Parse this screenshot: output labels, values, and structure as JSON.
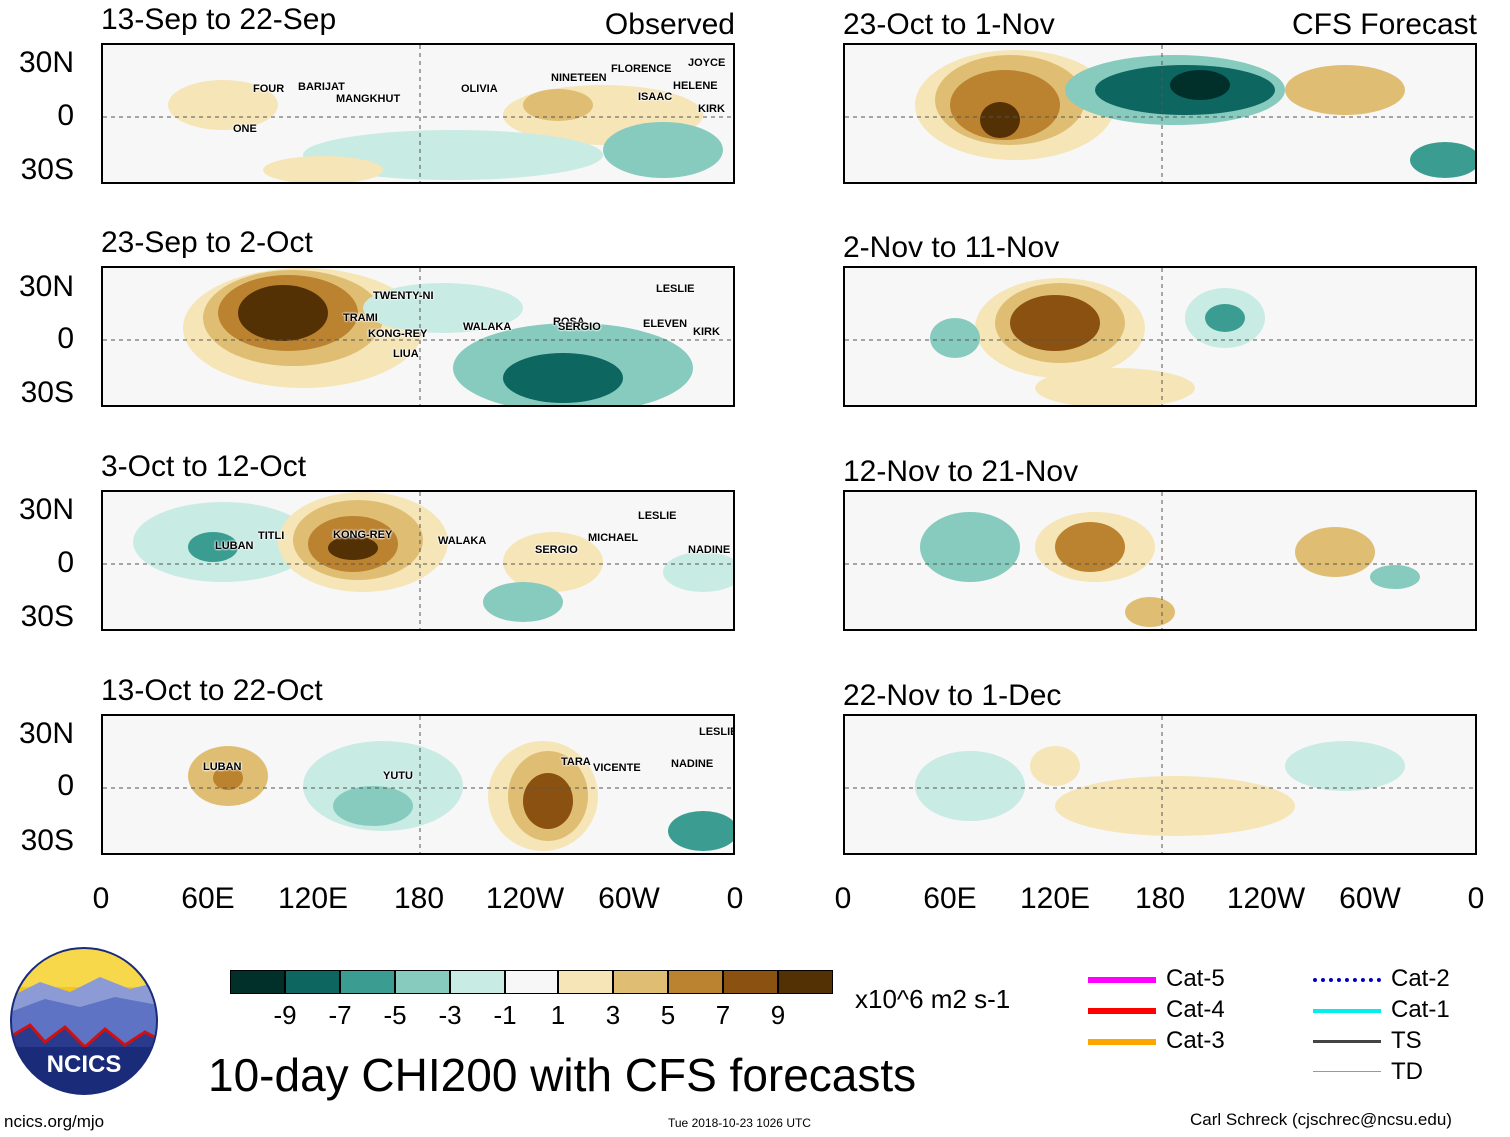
{
  "title": "10-day CHI200 with CFS forecasts",
  "units": "x10^6 m2 s-1",
  "column_labels": {
    "left": "Observed",
    "right": "CFS Forecast"
  },
  "lat_labels": [
    "30N",
    "0",
    "30S"
  ],
  "lon_labels": [
    "0",
    "60E",
    "120E",
    "180",
    "120W",
    "60W",
    "0"
  ],
  "panels": [
    {
      "period": "13-Sep to 22-Sep",
      "storms": [
        "FOUR",
        "BARIJAT",
        "MANGKHUT",
        "OLIVIA",
        "NINETEEN",
        "FLORENCE",
        "JOYCE",
        "HELENE",
        "ISAAC",
        "KIRK",
        "ONE"
      ]
    },
    {
      "period": "23-Sep to 2-Oct",
      "storms": [
        "TWENTY-NI",
        "TRAMI",
        "KONG-REY",
        "LIUA",
        "WALAKA",
        "ROSA",
        "SERGIO",
        "ELEVEN",
        "KIRK",
        "LESLIE"
      ]
    },
    {
      "period": "3-Oct to 12-Oct",
      "storms": [
        "LUBAN",
        "TITLI",
        "KONG-REY",
        "WALAKA",
        "SERGIO",
        "MICHAEL",
        "LESLIE",
        "NADINE"
      ]
    },
    {
      "period": "13-Oct to 22-Oct",
      "storms": [
        "LUBAN",
        "YUTU",
        "TARA",
        "VICENTE",
        "NADINE",
        "LESLIE"
      ]
    },
    {
      "period": "23-Oct to 1-Nov",
      "storms": []
    },
    {
      "period": "2-Nov to 11-Nov",
      "storms": []
    },
    {
      "period": "12-Nov to 21-Nov",
      "storms": []
    },
    {
      "period": "22-Nov to 1-Dec",
      "storms": []
    }
  ],
  "colorbar": {
    "ticks": [
      "-9",
      "-7",
      "-5",
      "-3",
      "-1",
      "1",
      "3",
      "5",
      "7",
      "9"
    ],
    "colors": [
      "#01302a",
      "#0d6660",
      "#3b9c92",
      "#86cbbe",
      "#c8ebe3",
      "#f7f7f7",
      "#f5e5b7",
      "#dfbe73",
      "#bb8330",
      "#8a5110",
      "#543005"
    ]
  },
  "legend": [
    {
      "label": "Cat-5",
      "color": "#ff00ff"
    },
    {
      "label": "Cat-4",
      "color": "#ff0000"
    },
    {
      "label": "Cat-3",
      "color": "#ffa500"
    },
    {
      "label": "Cat-2",
      "color": "#0000cc"
    },
    {
      "label": "Cat-1",
      "color": "#00eeee"
    },
    {
      "label": "TS",
      "color": "#444444"
    },
    {
      "label": "TD",
      "color": "#999999"
    }
  ],
  "logo_text": "NCICS",
  "footer": {
    "url": "ncics.org/mjo",
    "timestamp": "Tue 2018-10-23 1026 UTC",
    "credit": "Carl Schreck (cjschrec@ncsu.edu)"
  }
}
